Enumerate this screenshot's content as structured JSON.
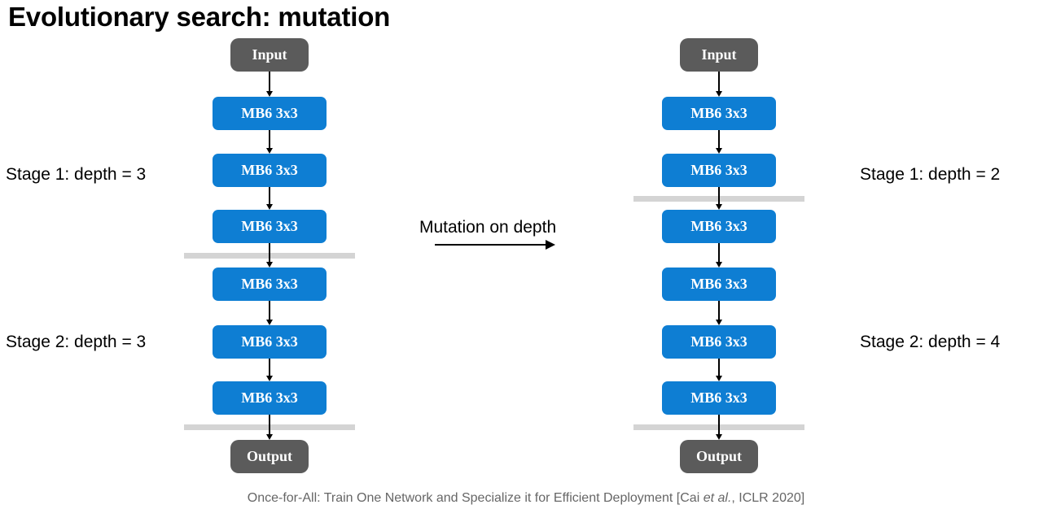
{
  "title": "Evolutionary search: mutation",
  "mutation_label": "Mutation on depth",
  "left": {
    "input_label": "Input",
    "output_label": "Output",
    "stage1_label": "Stage 1: depth = 3",
    "stage2_label": "Stage 2: depth = 3",
    "stage1_blocks": [
      "MB6 3x3",
      "MB6 3x3",
      "MB6 3x3"
    ],
    "stage2_blocks": [
      "MB6 3x3",
      "MB6 3x3",
      "MB6 3x3"
    ]
  },
  "right": {
    "input_label": "Input",
    "output_label": "Output",
    "stage1_label": "Stage 1: depth = 2",
    "stage2_label": "Stage 2: depth = 4",
    "stage1_blocks": [
      "MB6 3x3",
      "MB6 3x3"
    ],
    "stage2_blocks": [
      "MB6 3x3",
      "MB6 3x3",
      "MB6 3x3",
      "MB6 3x3"
    ]
  },
  "footer": {
    "prefix": "Once-for-All: Train One Network and Specialize it for Efficient Deployment [Cai ",
    "italic": "et al.",
    "suffix": ", ICLR 2020]"
  },
  "colors": {
    "block": "#0e7ed3",
    "io_box": "#5b5b5b",
    "separator": "#d4d4d4"
  }
}
